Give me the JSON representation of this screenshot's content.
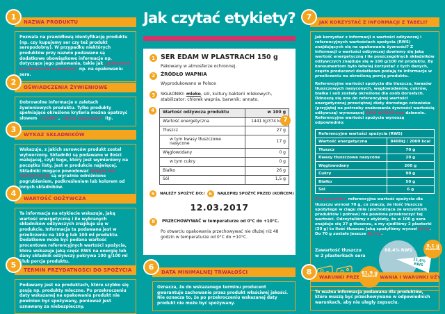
{
  "title": "Jak czytać etykiety?",
  "colors": {
    "background_teal": "#03a0a2",
    "accent_orange": "#f4a41d",
    "accent_crimson": "#d2346a",
    "pie_blue": "#a9ced8"
  },
  "sections": {
    "s1": {
      "num": "1",
      "title": "NAZWA PRODUKTU",
      "body": [
        {
          "t": "Pozwala na prawidłową identyfikację produktu (np. czy kupujemy ser czy też produkt seropodobny). W przypadku niektórych produktów przy nazwie podawane są dodatkowe obowiązkowe informacje np. dotyczące jego pakowania, takie jak "
        },
        {
          "t": "„pakowany w atmosferze ochronnej”",
          "hl": true
        },
        {
          "t": " np. na opakowaniu sera."
        }
      ]
    },
    "s2": {
      "num": "2",
      "title": "OŚWIADCZENIA ŻYWIENIOWE",
      "body": [
        {
          "t": "Dobrowolne informacje o zaletach żywieniowych produktu. Tylko produkty spełniające określone kryteria można opatrzyć słowem "
        },
        {
          "t": "„źródło”",
          "hl": true
        },
        {
          "t": ", "
        },
        {
          "t": "„niska zawartość”",
          "hl": true
        },
        {
          "t": " itp."
        }
      ]
    },
    "s3": {
      "num": "3",
      "title": "WYKAZ SKŁADNIKÓW",
      "body": [
        {
          "t": "Wskazuje, z jakich surowców produkt został wytworzony. Składniki są podawane w ilości malejącej, czyli tego, który jest wymieniony na początku listy, jest w produkcie najwięcej. Składniki mogące powodować "
        },
        {
          "t": "alergie lub nietolerancję",
          "hl": true
        },
        {
          "t": " są wyraźnie odróżnione pogrubieniem, podkreśleniem lub kolorem od innych składników."
        }
      ]
    },
    "s4": {
      "num": "4",
      "title": "WARTOŚĆ ODŻYWCZA",
      "body": [
        {
          "t": "Ta informacja na etykiecie wskazuje, jaką wartość energetyczną i ile wybranych składników odżywczych znajduje się w produkcie. Informacja ta podawana jest w przeliczeniu na 100 g lub 100 ml produktu. Dodatkowo może być podana wartość procentowa referencyjnych wartości spożycia, która wskazuje jaką część RWS na energię lub dany składnik odżywczy pokrywa 100 g/100 ml i/lub porcja produktu."
        }
      ]
    },
    "s5": {
      "num": "5",
      "title": "TERMIN PRZYDATNOŚCI DO SPOŻYCIA",
      "body": [
        {
          "t": "Podawany jest na produktach, które szybko się psują np. produkty mleczne. Po przekroczeniu daty wskazanej na opakowaniu produkt nie powinien być spożywany, ponieważ jest uznawany za niebezpieczny."
        }
      ]
    },
    "s6": {
      "num": "6",
      "title": "DATA MINIMALNEJ TRWAŁOŚCI",
      "body": [
        {
          "t": "Oznacza, że do wskazanego terminu producent gwarantuje zachowanie przez produkt właściwej jakości. Nie oznacza to, że po przekroczeniu wskazanej daty produkt nie może być spożywany."
        }
      ]
    },
    "s7": {
      "num": "7",
      "title": "JAK KORZYSTAĆ Z INFORMACJI Z TABELI?",
      "p1": [
        {
          "t": "Jak korzystać z informacji o wartości odżywczej i referencyjnych wartościach spożycia (RWS) znajdujących się na opakowaniu żywności? Z informacji o wartości odżywczej dowiemy się jaką wartość energetyczną i ile poszczególnych składników odżywczych znajduje się w 100 g/100 ml produktu. By konsumentom było łatwiej korzystać z tych danych, często producenci dodatkowo podają te informacje w przeliczeniu na określoną porcję produktu."
        }
      ],
      "p2": [
        {
          "t": "Referencyjne wartości spożycia dla tłuszczu, kwasów tłuszczowych nasyconych, węglowodanów, cukrów, białka i soli zostały określone dla osób dorosłych. Odnoszą się one do referencyjnej wartości energetycznej przeciętnej diety dorosłego człowieka (przyjętej na potrzeby znakowania żywności wartością odżywczą) wynoszącej "
        },
        {
          "t": "8400 kJ/2000 kcal",
          "hl": true
        },
        {
          "t": " dziennie. Referencyjne wartości spożycia wynoszą odpowiednio:"
        }
      ],
      "p3": [
        {
          "t": "Dla przykładu:",
          "hl": true
        },
        {
          "t": " referencyjna wartość spożycia dla tłuszczu wynosi 70 g, co znaczy, że ilość tłuszczu spożytego w ciągu dnia (pochodząca ze wszystkich produktów i potraw) nie powinna przekroczyć tej wartości. Odczytaliśmy z etykiety, że w 100 g sera znajduje się 27 g tłuszczu, a my zjedliśmy 2 plasterki (30 g) to ilość tłuszczu jaką spożyliśmy wynosi "
        },
        {
          "t": "8,1 g",
          "hl": true
        },
        {
          "t": ". Do 70 g zostało jeszcze "
        },
        {
          "t": "61,9 g",
          "hl": true
        },
        {
          "t": "."
        }
      ]
    },
    "s8": {
      "num": "8",
      "title": "WARUNKI PRZECHOWYWANIA I WARUNKI UŻYCIA",
      "body": [
        {
          "t": "To ważna informacja podawana dla produktów, które muszą być przechowywane w odpowiednich warunkach, aby nie uległy zepsuciu."
        }
      ]
    }
  },
  "label": {
    "item1": {
      "num": "1",
      "title": "SER EDAM W PLASTRACH 150 g",
      "sub": "Pakowany w atmosferze ochronnej."
    },
    "item2": {
      "num": "2",
      "title": "ŹRÓDŁO WAPNIA",
      "sub": "Wyprodukowano w Polsce"
    },
    "item3": {
      "num": "3",
      "prefix": "SKŁADNIKI: ",
      "allergen": "mleko",
      "rest": ", sól, kultury bakterii mlekowych, stabilizator: chlorek wapnia, barwnik: annato."
    },
    "table": {
      "num": "4",
      "marker7": "7",
      "header": [
        "Wartość odżywcza produktu",
        "w 100 g"
      ],
      "rows": [
        {
          "name": "Wartość energetyczna",
          "value": "1441 kJ/374 kcal"
        },
        {
          "name": "Tłuszcz",
          "value": "27 g"
        },
        {
          "name": "w tym kwasy tłuszczowe nasycone",
          "value": "17 g",
          "indent": true
        },
        {
          "name": "Węglowodany",
          "value": "0 g"
        },
        {
          "name": "w tym cukry",
          "value": "0 g",
          "indent": true
        },
        {
          "name": "Białko",
          "value": "26 g"
        },
        {
          "name": "Sól",
          "value": "1,5 g"
        }
      ]
    },
    "consume": {
      "num5": "5",
      "label5": "NALEŻY SPOŻYĆ DO:/",
      "num6": "6",
      "label6": "NAJLEPIEJ SPOŻYĆ PRZED (KOŃCEM)",
      "date": "12.03.2017"
    },
    "storage": {
      "num": "8",
      "text": "PRZECHOWYWAĆ w temperaturze od 0°C do +10°C.",
      "note": "Po otwarciu opakowania przechowywać nie dłużej niż 48 godzin w temperaturze od 0°C do +10°C."
    }
  },
  "rws_table": {
    "title": "Referencyjne wartości spożycia (RWS)",
    "rows": [
      [
        "Wartość energetyczna",
        "8400kJ / 2000 kcal"
      ],
      [
        "Tłuszcz",
        "70 g"
      ],
      [
        "Kwasy tłuszczowe nasycone",
        "20 g"
      ],
      [
        "Węglowodany",
        "260 g"
      ],
      [
        "Cukry",
        "90 g"
      ],
      [
        "Białko",
        "50 g"
      ],
      [
        "Sól",
        "6 g"
      ]
    ]
  },
  "chart_data": {
    "type": "pie",
    "title": "Zawartość tłuszczu w 2 plasterkach sera",
    "slices": [
      {
        "label": "88,4% RWS",
        "value": 88.4
      },
      {
        "label": "11,6% RWS",
        "value": 11.6
      }
    ],
    "bubbles": {
      "left": {
        "value": "61,9 g",
        "unit": "tłuszczu"
      },
      "right": {
        "value": "8,1 g",
        "unit": "tłuszczu"
      }
    }
  }
}
